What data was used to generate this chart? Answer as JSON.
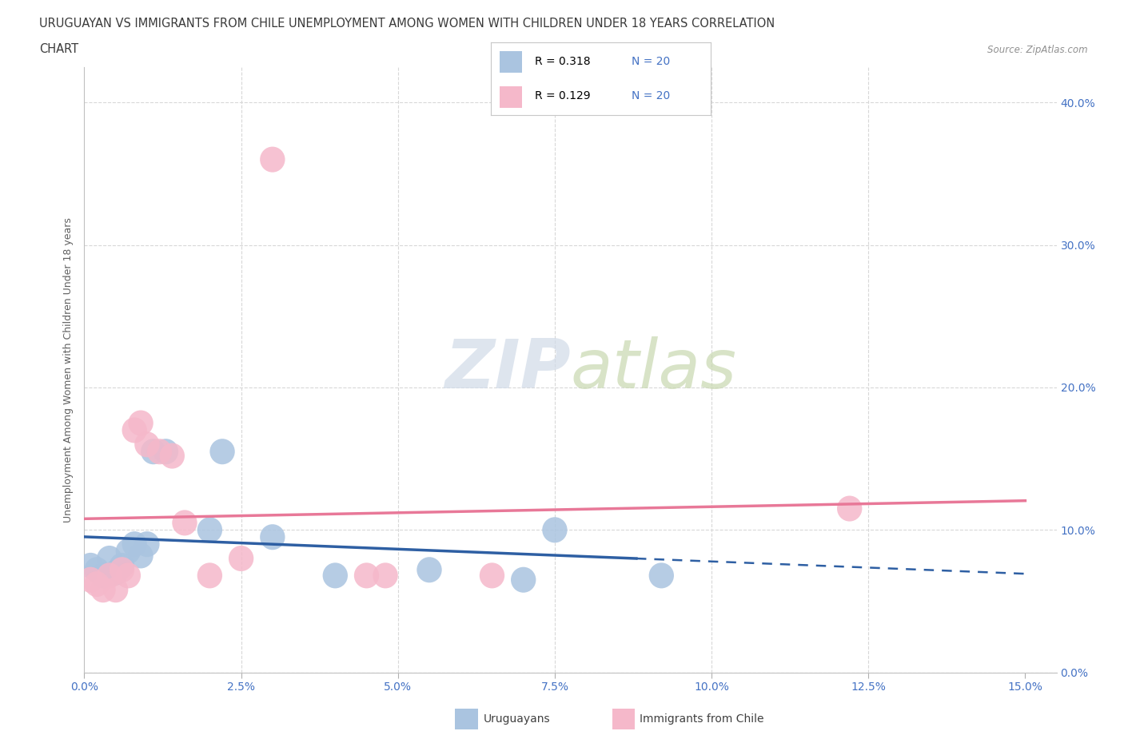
{
  "title_line1": "URUGUAYAN VS IMMIGRANTS FROM CHILE UNEMPLOYMENT AMONG WOMEN WITH CHILDREN UNDER 18 YEARS CORRELATION",
  "title_line2": "CHART",
  "source": "Source: ZipAtlas.com",
  "xlabel_ticks": [
    "0.0%",
    "2.5%",
    "5.0%",
    "7.5%",
    "10.0%",
    "12.5%",
    "15.0%"
  ],
  "ylabel_ticks": [
    "0.0%",
    "10.0%",
    "20.0%",
    "30.0%",
    "40.0%"
  ],
  "ylabel_label": "Unemployment Among Women with Children Under 18 years",
  "xlim": [
    0.0,
    0.155
  ],
  "ylim": [
    0.0,
    0.425
  ],
  "watermark": "ZIPatlas",
  "legend_blue_r": "R = 0.318",
  "legend_blue_n": "N = 20",
  "legend_pink_r": "R = 0.129",
  "legend_pink_n": "N = 20",
  "uruguayan_x": [
    0.001,
    0.002,
    0.003,
    0.004,
    0.005,
    0.006,
    0.007,
    0.008,
    0.009,
    0.01,
    0.011,
    0.013,
    0.02,
    0.022,
    0.03,
    0.04,
    0.055,
    0.07,
    0.075,
    0.092
  ],
  "uruguayan_y": [
    0.075,
    0.072,
    0.068,
    0.08,
    0.07,
    0.075,
    0.085,
    0.09,
    0.082,
    0.09,
    0.155,
    0.155,
    0.1,
    0.155,
    0.095,
    0.068,
    0.072,
    0.065,
    0.1,
    0.068
  ],
  "chile_x": [
    0.001,
    0.002,
    0.003,
    0.004,
    0.005,
    0.006,
    0.007,
    0.008,
    0.009,
    0.01,
    0.012,
    0.014,
    0.016,
    0.02,
    0.025,
    0.03,
    0.045,
    0.048,
    0.065,
    0.122
  ],
  "chile_y": [
    0.065,
    0.062,
    0.058,
    0.068,
    0.058,
    0.072,
    0.068,
    0.17,
    0.175,
    0.16,
    0.155,
    0.152,
    0.105,
    0.068,
    0.08,
    0.36,
    0.068,
    0.068,
    0.068,
    0.115
  ],
  "blue_color": "#aac4e0",
  "pink_color": "#f5b8ca",
  "blue_line_color": "#2e5fa3",
  "pink_line_color": "#e87898",
  "grid_color": "#d8d8d8",
  "background_color": "#ffffff",
  "title_color": "#3a3a3a",
  "source_color": "#909090",
  "tick_label_color": "#4472c4",
  "ytick_vals": [
    0.0,
    0.1,
    0.2,
    0.3,
    0.4
  ],
  "xtick_vals": [
    0.0,
    0.025,
    0.05,
    0.075,
    0.1,
    0.125,
    0.15
  ]
}
